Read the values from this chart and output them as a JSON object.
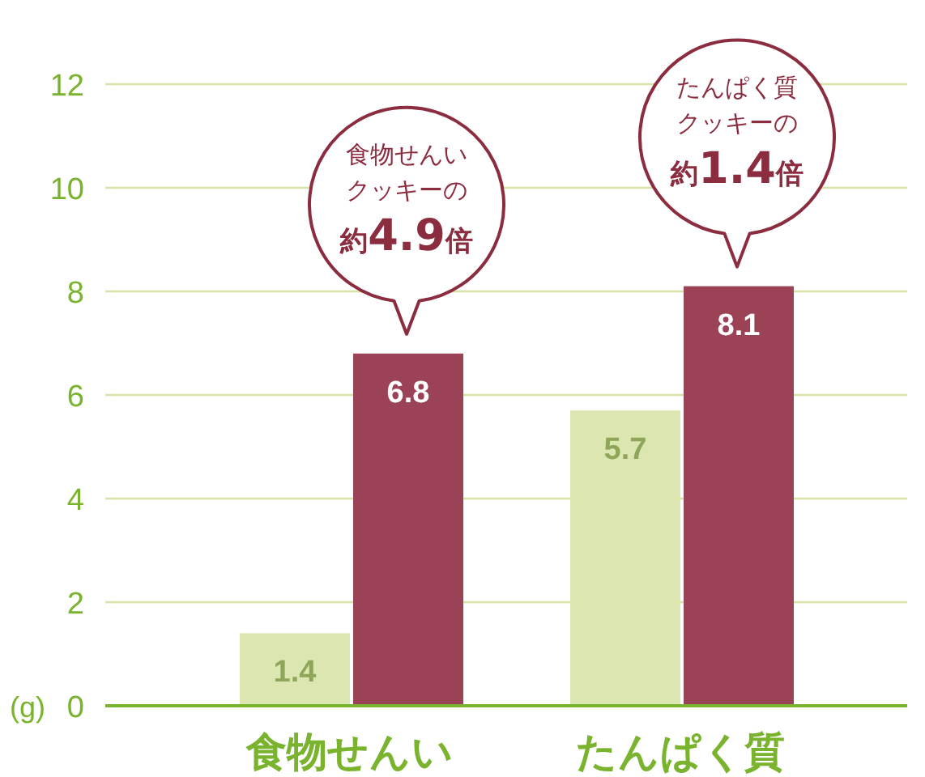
{
  "chart_data": {
    "type": "bar",
    "ylabel": "(g)",
    "categories": [
      "食物せんい",
      "たんぱく質"
    ],
    "series": [
      {
        "color": "#dce6b0",
        "values": [
          1.4,
          5.7
        ]
      },
      {
        "color": "#9b4257",
        "values": [
          6.8,
          8.1
        ]
      }
    ],
    "ylim": [
      0,
      12
    ],
    "yticks": [
      0,
      2,
      4,
      6,
      8,
      10,
      12
    ],
    "grid": "y",
    "data_labels": true,
    "annotations": [
      {
        "text": "食物せんいクッキーの約4.9倍",
        "x": "食物せんい",
        "y": 6.8
      },
      {
        "text": "たんぱく質クッキーの約1.4倍",
        "x": "たんぱく質",
        "y": 8.1
      }
    ]
  }
}
